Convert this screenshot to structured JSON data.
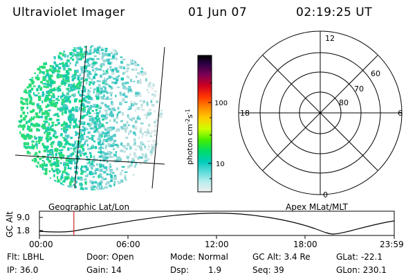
{
  "header": {
    "instrument": "Ultraviolet Imager",
    "date": "01 Jun 07",
    "time": "02:19:25 UT"
  },
  "colorbar": {
    "label": "photon cm",
    "exp1": "-2",
    "mid": "s",
    "exp2": "-1",
    "ticks": [
      "100",
      "10"
    ]
  },
  "polar_plot": {
    "mlt_labels": [
      "12",
      "18",
      "6",
      "0"
    ],
    "lat_labels": [
      "60",
      "70",
      "80"
    ]
  },
  "left_panel_label": "Geographic Lat/Lon",
  "right_panel_label": "Apex MLat/MLT",
  "altitude_plot": {
    "ylabel": "GC Alt",
    "yticks": [
      "9.0",
      "1.8"
    ],
    "xticks": [
      "00:00",
      "06:00",
      "12:00",
      "18:00",
      "23:59"
    ],
    "marker_time_fraction": 0.097
  },
  "info": {
    "filter": "Flt: LBHL",
    "ip": "IP: 36.0",
    "door": "Door: Open",
    "gain": "Gain: 14",
    "mode": "Mode: Normal",
    "dsp_label": "Dsp:",
    "dsp_value": "1.9",
    "gc_alt": "GC Alt: 3.4 Re",
    "seq": "Seq: 39",
    "glat": "GLat: -22.1",
    "glon": "GLon: 230.1"
  },
  "colors": {
    "marker": "#cc2222",
    "colorbar_stops": [
      "#000000",
      "#330055",
      "#6a006a",
      "#aa0033",
      "#e00000",
      "#ff5500",
      "#ff9900",
      "#ffdd00",
      "#aaff00",
      "#33ee00",
      "#00dd66",
      "#00ccbb",
      "#55dddd",
      "#bbeeee",
      "#eeeeee"
    ]
  }
}
